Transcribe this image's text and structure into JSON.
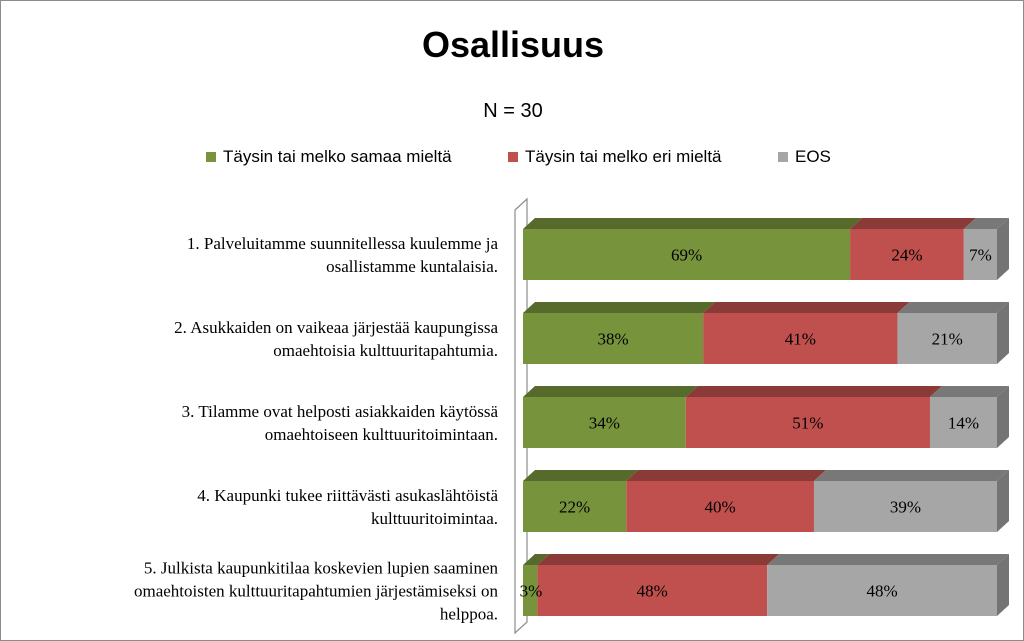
{
  "chart_data": {
    "type": "bar",
    "orientation": "horizontal",
    "stacked": "percent",
    "three_d": true,
    "title": "Osallisuus",
    "subtitle": "N = 30",
    "legend_position": "top",
    "grid": false,
    "categories": [
      [
        "1. Palveluitamme suunnitellessa kuulemme ja",
        "osallistamme kuntalaisia."
      ],
      [
        "2. Asukkaiden on vaikeaa järjestää kaupungissa",
        "omaehtoisia kulttuuritapahtumia."
      ],
      [
        "3. Tilamme ovat helposti asiakkaiden käytössä",
        "omaehtoiseen kulttuuritoimintaan."
      ],
      [
        "4. Kaupunki tukee riittävästi asukaslähtöistä",
        "kulttuuritoimintaa."
      ],
      [
        "5. Julkista kaupunkitilaa koskevien lupien saaminen",
        "omaehtoisten kulttuuritapahtumien järjestämiseksi on",
        "helppoa."
      ]
    ],
    "series": [
      {
        "name": "Täysin tai melko samaa mieltä",
        "color": "#77933c",
        "values": [
          69,
          38,
          34,
          22,
          3
        ]
      },
      {
        "name": "Täysin tai melko eri mieltä",
        "color": "#c0504d",
        "values": [
          24,
          41,
          51,
          40,
          48
        ]
      },
      {
        "name": "EOS",
        "color": "#a6a6a6",
        "values": [
          7,
          21,
          14,
          39,
          48
        ]
      }
    ],
    "data_labels": [
      [
        "69%",
        "38%",
        "34%",
        "22%",
        "3%"
      ],
      [
        "24%",
        "41%",
        "51%",
        "40%",
        "48%"
      ],
      [
        "7%",
        "21%",
        "14%",
        "39%",
        "48%"
      ]
    ]
  }
}
